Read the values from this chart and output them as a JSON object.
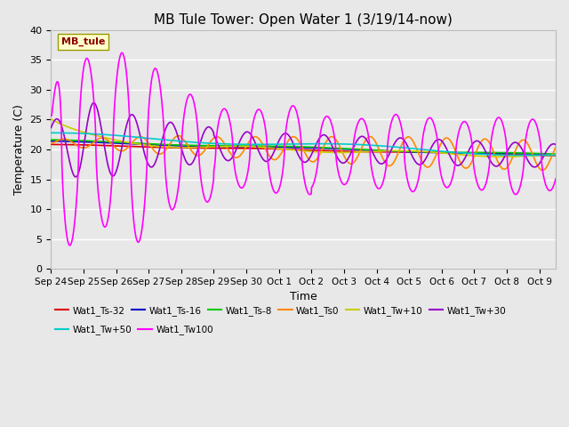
{
  "title": "MB Tule Tower: Open Water 1 (3/19/14-now)",
  "xlabel": "Time",
  "ylabel": "Temperature (C)",
  "ylim": [
    0,
    40
  ],
  "yticks": [
    0,
    5,
    10,
    15,
    20,
    25,
    30,
    35,
    40
  ],
  "bg_color": "#e8e8e8",
  "legend_label": "MB_tule",
  "x_tick_labels": [
    "Sep 24",
    "Sep 25",
    "Sep 26",
    "Sep 27",
    "Sep 28",
    "Sep 29",
    "Sep 30",
    "Oct 1",
    "Oct 2",
    "Oct 3",
    "Oct 4",
    "Oct 5",
    "Oct 6",
    "Oct 7",
    "Oct 8",
    "Oct 9"
  ],
  "x_tick_positions": [
    0,
    1,
    2,
    3,
    4,
    5,
    6,
    7,
    8,
    9,
    10,
    11,
    12,
    13,
    14,
    15
  ],
  "xlim": [
    0,
    15.5
  ],
  "series_colors": {
    "ts32": "#dd0000",
    "ts16": "#0000cc",
    "ts8": "#00cc00",
    "ts0": "#ff8800",
    "tw10": "#cccc00",
    "tw30": "#9900cc",
    "tw50": "#00cccc",
    "tw100": "#ff00ff"
  },
  "legend_entries": [
    [
      "Wat1_Ts-32",
      "#dd0000"
    ],
    [
      "Wat1_Ts-16",
      "#0000cc"
    ],
    [
      "Wat1_Ts-8",
      "#00cc00"
    ],
    [
      "Wat1_Ts0",
      "#ff8800"
    ],
    [
      "Wat1_Tw+10",
      "#cccc00"
    ],
    [
      "Wat1_Tw+30",
      "#9900cc"
    ],
    [
      "Wat1_Tw+50",
      "#00cccc"
    ],
    [
      "Wat1_Tw100",
      "#ff00ff"
    ]
  ]
}
